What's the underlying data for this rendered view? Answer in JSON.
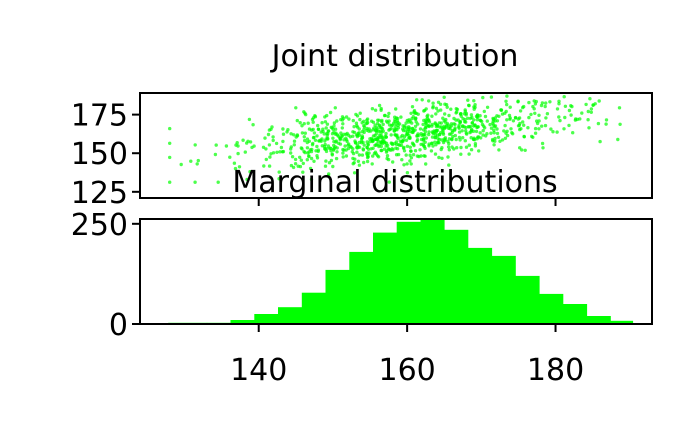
{
  "chart_data": [
    {
      "type": "scatter",
      "title": "Joint distribution",
      "xlabel": "",
      "ylabel": "",
      "xlim": [
        124,
        193
      ],
      "ylim": [
        121,
        189
      ],
      "x_ticks": [
        140,
        160,
        180
      ],
      "y_ticks": [
        125,
        150,
        175
      ],
      "y_tick_labels": [
        "125",
        "150",
        "175"
      ],
      "grid": false,
      "color": "#00ff00",
      "trend": {
        "slope": 0.5,
        "at_x": 160,
        "at_y": 163
      },
      "spread": {
        "x_sd": 11,
        "y_sd": 9
      },
      "point_count": 1000
    },
    {
      "type": "bar",
      "title": "Marginal distributions",
      "xlabel": "",
      "ylabel": "",
      "xlim": [
        124,
        193
      ],
      "ylim": [
        0,
        262
      ],
      "x_ticks": [
        140,
        160,
        180
      ],
      "x_tick_labels": [
        "140",
        "160",
        "180"
      ],
      "y_ticks": [
        0,
        250
      ],
      "y_tick_labels": [
        "0",
        "250"
      ],
      "grid": false,
      "color": "#00ff00",
      "bins": [
        {
          "x0": 127.8,
          "x1": 133.0,
          "value": 3
        },
        {
          "x0": 133.0,
          "x1": 136.2,
          "value": 3
        },
        {
          "x0": 136.2,
          "x1": 139.4,
          "value": 10
        },
        {
          "x0": 139.4,
          "x1": 142.6,
          "value": 25
        },
        {
          "x0": 142.6,
          "x1": 145.8,
          "value": 42
        },
        {
          "x0": 145.8,
          "x1": 149.0,
          "value": 78
        },
        {
          "x0": 149.0,
          "x1": 152.2,
          "value": 135
        },
        {
          "x0": 152.2,
          "x1": 155.4,
          "value": 180
        },
        {
          "x0": 155.4,
          "x1": 158.6,
          "value": 228
        },
        {
          "x0": 158.6,
          "x1": 161.8,
          "value": 255
        },
        {
          "x0": 161.8,
          "x1": 165.0,
          "value": 262
        },
        {
          "x0": 165.0,
          "x1": 168.2,
          "value": 235
        },
        {
          "x0": 168.2,
          "x1": 171.4,
          "value": 190
        },
        {
          "x0": 171.4,
          "x1": 174.6,
          "value": 170
        },
        {
          "x0": 174.6,
          "x1": 177.8,
          "value": 120
        },
        {
          "x0": 177.8,
          "x1": 181.0,
          "value": 75
        },
        {
          "x0": 181.0,
          "x1": 184.2,
          "value": 50
        },
        {
          "x0": 184.2,
          "x1": 187.4,
          "value": 20
        },
        {
          "x0": 187.4,
          "x1": 190.4,
          "value": 8
        }
      ]
    }
  ]
}
